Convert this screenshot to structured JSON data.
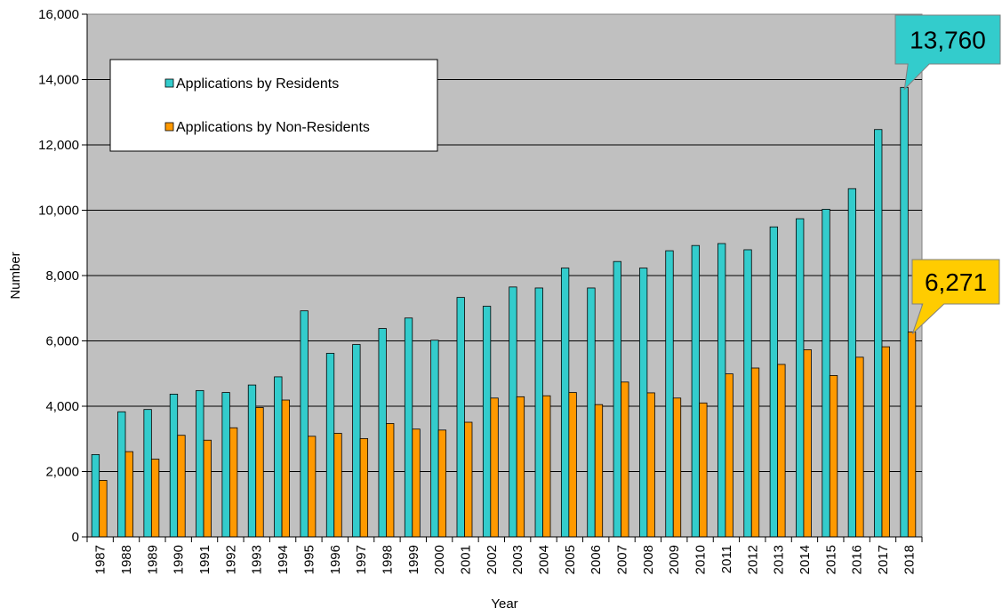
{
  "chart_data": {
    "type": "bar",
    "title": "",
    "xlabel": "Year",
    "ylabel": "Number",
    "ylim": [
      0,
      16000
    ],
    "yticks": [
      0,
      2000,
      4000,
      6000,
      8000,
      10000,
      12000,
      14000,
      16000
    ],
    "ytick_labels": [
      "0",
      "2,000",
      "4,000",
      "6,000",
      "8,000",
      "10,000",
      "12,000",
      "14,000",
      "16,000"
    ],
    "grid": "horizontal",
    "plot_background": "#c0c0c0",
    "legend_position": "top-left",
    "categories": [
      "1987",
      "1988",
      "1989",
      "1990",
      "1991",
      "1992",
      "1993",
      "1994",
      "1995",
      "1996",
      "1997",
      "1998",
      "1999",
      "2000",
      "2001",
      "2002",
      "2003",
      "2004",
      "2005",
      "2006",
      "2007",
      "2008",
      "2009",
      "2010",
      "2011",
      "2012",
      "2013",
      "2014",
      "2015",
      "2016",
      "2017",
      "2018"
    ],
    "series": [
      {
        "name": "Applications by Residents",
        "color": "#33cccc",
        "values": [
          2520,
          3830,
          3900,
          4370,
          4480,
          4420,
          4650,
          4900,
          6920,
          5620,
          5890,
          6380,
          6700,
          6020,
          7330,
          7060,
          7650,
          7620,
          8230,
          7620,
          8430,
          8230,
          8760,
          8920,
          8980,
          8790,
          9490,
          9740,
          10030,
          10660,
          12470,
          13760
        ]
      },
      {
        "name": "Applications by Non-Residents",
        "color": "#ff9900",
        "values": [
          1730,
          2610,
          2380,
          3110,
          2960,
          3340,
          3960,
          4190,
          3080,
          3170,
          3010,
          3470,
          3300,
          3270,
          3510,
          4250,
          4290,
          4320,
          4420,
          4050,
          4740,
          4410,
          4250,
          4100,
          4990,
          5170,
          5280,
          5730,
          4940,
          5500,
          5820,
          6271
        ]
      }
    ],
    "annotations": [
      {
        "text": "13,760",
        "series": 0,
        "category": "2018",
        "color": "#33cccc"
      },
      {
        "text": "6,271",
        "series": 1,
        "category": "2018",
        "color": "#ffcc00"
      }
    ]
  }
}
